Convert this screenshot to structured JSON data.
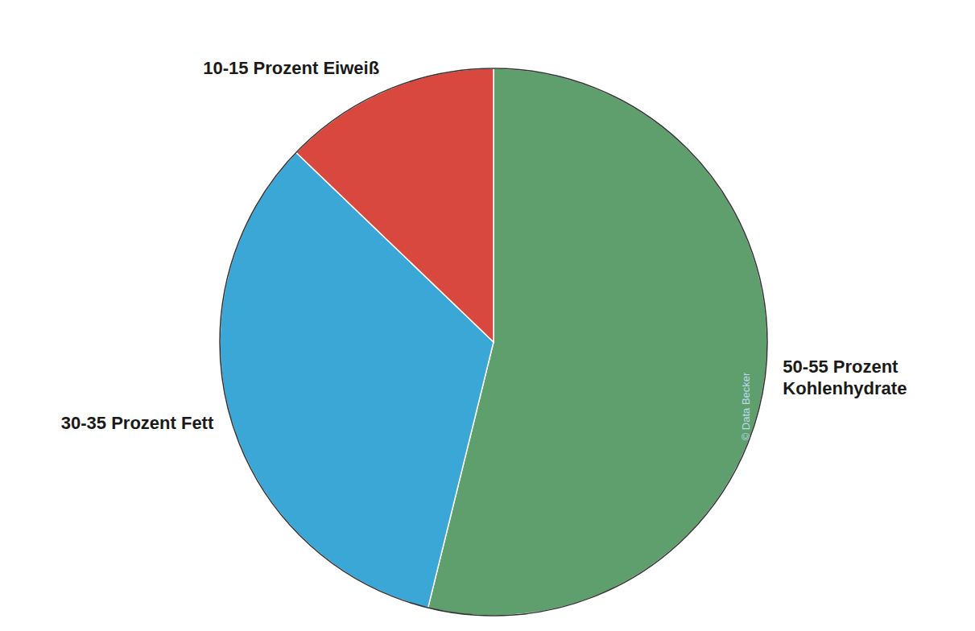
{
  "chart_data": {
    "type": "pie",
    "categories": [
      "50-55 Prozent Kohlenhydrate",
      "30-35 Prozent Fett",
      "10-15 Prozent Eiweiß"
    ],
    "values": [
      52.5,
      32.5,
      12.5
    ],
    "colors": [
      "#5f9f6d",
      "#3ba7d7",
      "#d9483f"
    ],
    "annotations": [
      "© Data Becker"
    ]
  }
}
